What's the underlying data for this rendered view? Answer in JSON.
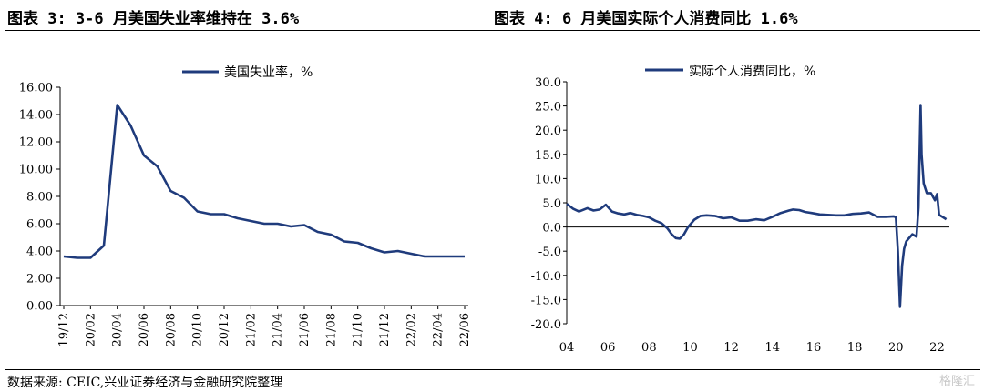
{
  "figure_left_title": "图表 3:  3-6 月美国失业率维持在 3.6%",
  "figure_right_title": "图表 4:   6 月美国实际个人消费同比 1.6%",
  "source_note": "数据来源: CEIC,兴业证券经济与金融研究院整理",
  "watermark": "格隆汇",
  "line_color": "#1f3b7c",
  "chart_data": [
    {
      "type": "line",
      "title": "",
      "legend": "top-center",
      "series": [
        {
          "name": "美国失业率，%",
          "x": [
            "19/12",
            "20/01",
            "20/02",
            "20/03",
            "20/04",
            "20/05",
            "20/06",
            "20/07",
            "20/08",
            "20/09",
            "20/10",
            "20/11",
            "20/12",
            "21/01",
            "21/02",
            "21/03",
            "21/04",
            "21/05",
            "21/06",
            "21/07",
            "21/08",
            "21/09",
            "21/10",
            "21/11",
            "21/12",
            "22/01",
            "22/02",
            "22/03",
            "22/04",
            "22/05",
            "22/06"
          ],
          "values": [
            3.6,
            3.5,
            3.5,
            4.4,
            14.7,
            13.2,
            11.0,
            10.2,
            8.4,
            7.9,
            6.9,
            6.7,
            6.7,
            6.4,
            6.2,
            6.0,
            6.0,
            5.8,
            5.9,
            5.4,
            5.2,
            4.7,
            4.6,
            4.2,
            3.9,
            4.0,
            3.8,
            3.6,
            3.6,
            3.6,
            3.6
          ]
        }
      ],
      "x_tick_labels": [
        "19/12",
        "20/02",
        "20/04",
        "20/06",
        "20/08",
        "20/10",
        "20/12",
        "21/02",
        "21/04",
        "21/06",
        "21/08",
        "21/10",
        "21/12",
        "22/02",
        "22/04",
        "22/06"
      ],
      "y_tick_labels": [
        "0.00",
        "2.00",
        "4.00",
        "6.00",
        "8.00",
        "10.00",
        "12.00",
        "14.00",
        "16.00"
      ],
      "ylim": [
        0,
        16
      ],
      "grid": false
    },
    {
      "type": "line",
      "title": "",
      "legend": "top-center",
      "series": [
        {
          "name": "实际个人消费同比，%",
          "x": [
            2004.0,
            2004.3,
            2004.6,
            2005.0,
            2005.3,
            2005.6,
            2005.9,
            2006.2,
            2006.5,
            2006.8,
            2007.1,
            2007.4,
            2007.7,
            2008.0,
            2008.3,
            2008.6,
            2008.9,
            2009.1,
            2009.3,
            2009.5,
            2009.7,
            2009.9,
            2010.2,
            2010.5,
            2010.8,
            2011.2,
            2011.6,
            2012.0,
            2012.4,
            2012.8,
            2013.2,
            2013.6,
            2014.0,
            2014.4,
            2014.8,
            2015.0,
            2015.3,
            2015.6,
            2015.9,
            2016.3,
            2016.7,
            2017.1,
            2017.5,
            2017.9,
            2018.3,
            2018.7,
            2019.1,
            2019.5,
            2019.9,
            2020.0,
            2020.1,
            2020.2,
            2020.3,
            2020.4,
            2020.5,
            2020.6,
            2020.8,
            2021.0,
            2021.1,
            2021.2,
            2021.25,
            2021.35,
            2021.5,
            2021.7,
            2021.9,
            2022.0,
            2022.1,
            2022.3,
            2022.45
          ],
          "values": [
            4.8,
            3.8,
            3.2,
            3.9,
            3.4,
            3.6,
            4.6,
            3.2,
            2.8,
            2.6,
            2.9,
            2.5,
            2.3,
            2.0,
            1.3,
            0.8,
            -0.3,
            -1.5,
            -2.3,
            -2.4,
            -1.5,
            0.0,
            1.5,
            2.3,
            2.4,
            2.3,
            1.8,
            2.0,
            1.3,
            1.3,
            1.6,
            1.4,
            2.1,
            2.9,
            3.4,
            3.6,
            3.5,
            3.1,
            2.9,
            2.6,
            2.5,
            2.4,
            2.4,
            2.7,
            2.8,
            3.0,
            2.1,
            2.1,
            2.2,
            2.0,
            -5.0,
            -16.5,
            -8.0,
            -4.5,
            -3.0,
            -2.5,
            -1.5,
            -2.0,
            4.0,
            25.2,
            15.0,
            9.0,
            7.0,
            7.0,
            5.5,
            6.8,
            2.5,
            2.0,
            1.6
          ]
        }
      ],
      "x_tick_labels": [
        "04",
        "06",
        "08",
        "10",
        "12",
        "14",
        "16",
        "18",
        "20",
        "22"
      ],
      "y_tick_labels": [
        "-20.0",
        "-15.0",
        "-10.0",
        "-5.0",
        "0.0",
        "5.0",
        "10.0",
        "15.0",
        "20.0",
        "25.0",
        "30.0"
      ],
      "xlim": [
        2004,
        2022.6
      ],
      "ylim": [
        -20,
        30
      ],
      "grid": false
    }
  ]
}
